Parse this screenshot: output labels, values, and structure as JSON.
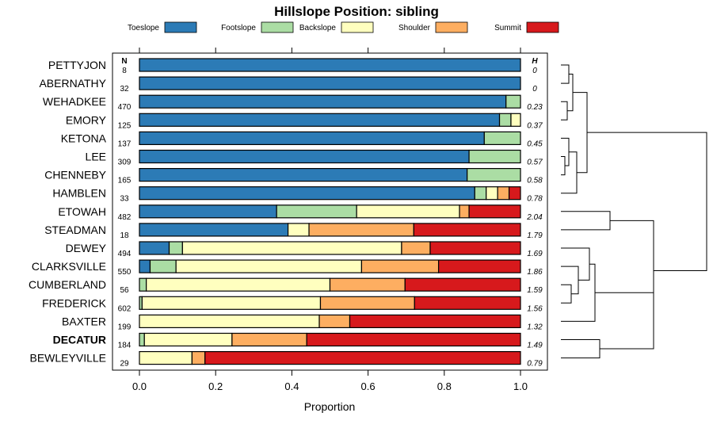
{
  "chart_data": {
    "type": "bar",
    "orientation": "horizontal",
    "stacked": true,
    "title": "Hillslope Position: sibling",
    "xlabel": "Proportion",
    "xlim": [
      0,
      1
    ],
    "xticks": [
      "0.0",
      "0.2",
      "0.4",
      "0.6",
      "0.8",
      "1.0"
    ],
    "n_header": "N",
    "h_header": "H",
    "highlight": "DECATUR",
    "legend_position": "top",
    "categories_legend": [
      {
        "name": "Toeslope",
        "color": "#2c7bb6"
      },
      {
        "name": "Footslope",
        "color": "#abdda4"
      },
      {
        "name": "Backslope",
        "color": "#ffffbf"
      },
      {
        "name": "Shoulder",
        "color": "#fdae61"
      },
      {
        "name": "Summit",
        "color": "#d7191c"
      }
    ],
    "rows": [
      {
        "label": "PETTYJON",
        "n": "8",
        "h": "0",
        "values": [
          1.0,
          0,
          0,
          0,
          0
        ]
      },
      {
        "label": "ABERNATHY",
        "n": "32",
        "h": "0",
        "values": [
          1.0,
          0,
          0,
          0,
          0
        ]
      },
      {
        "label": "WEHADKEE",
        "n": "470",
        "h": "0.23",
        "values": [
          0.962,
          0.038,
          0,
          0,
          0
        ]
      },
      {
        "label": "EMORY",
        "n": "125",
        "h": "0.37",
        "values": [
          0.945,
          0.03,
          0.025,
          0,
          0
        ]
      },
      {
        "label": "KETONA",
        "n": "137",
        "h": "0.45",
        "values": [
          0.905,
          0.095,
          0,
          0,
          0
        ]
      },
      {
        "label": "LEE",
        "n": "309",
        "h": "0.57",
        "values": [
          0.865,
          0.135,
          0,
          0,
          0
        ]
      },
      {
        "label": "CHENNEBY",
        "n": "165",
        "h": "0.58",
        "values": [
          0.86,
          0.14,
          0,
          0,
          0
        ]
      },
      {
        "label": "HAMBLEN",
        "n": "33",
        "h": "0.78",
        "values": [
          0.88,
          0.03,
          0.03,
          0.03,
          0.03
        ]
      },
      {
        "label": "ETOWAH",
        "n": "482",
        "h": "2.04",
        "values": [
          0.36,
          0.21,
          0.27,
          0.025,
          0.135
        ]
      },
      {
        "label": "STEADMAN",
        "n": "18",
        "h": "1.79",
        "values": [
          0.39,
          0,
          0.055,
          0.275,
          0.28
        ]
      },
      {
        "label": "DEWEY",
        "n": "494",
        "h": "1.69",
        "values": [
          0.078,
          0.035,
          0.575,
          0.075,
          0.237
        ]
      },
      {
        "label": "CLARKSVILLE",
        "n": "550",
        "h": "1.86",
        "values": [
          0.028,
          0.068,
          0.487,
          0.202,
          0.215
        ]
      },
      {
        "label": "CUMBERLAND",
        "n": "56",
        "h": "1.59",
        "values": [
          0,
          0.018,
          0.482,
          0.197,
          0.303
        ]
      },
      {
        "label": "FREDERICK",
        "n": "602",
        "h": "1.56",
        "values": [
          0,
          0.007,
          0.468,
          0.247,
          0.278
        ]
      },
      {
        "label": "BAXTER",
        "n": "199",
        "h": "1.32",
        "values": [
          0,
          0,
          0.472,
          0.08,
          0.448
        ]
      },
      {
        "label": "DECATUR",
        "n": "184",
        "h": "1.49",
        "values": [
          0,
          0.013,
          0.23,
          0.196,
          0.561
        ]
      },
      {
        "label": "BEWLEYVILLE",
        "n": "29",
        "h": "0.79",
        "values": [
          0,
          0,
          0.138,
          0.034,
          0.828
        ]
      }
    ]
  }
}
